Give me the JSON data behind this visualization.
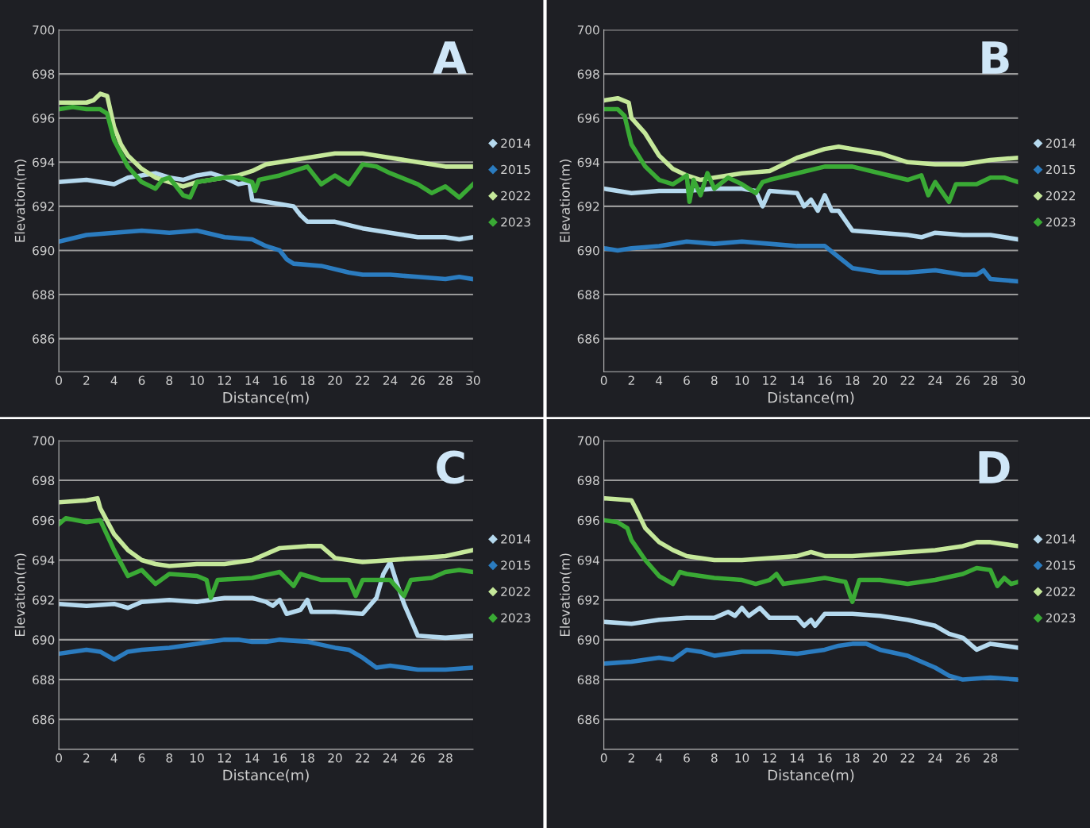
{
  "chart_data": [
    {
      "type": "line",
      "xlabel": "Distance(m)",
      "ylabel": "Elevation(m)",
      "annotations": [
        "A"
      ],
      "xlim": [
        0,
        30
      ],
      "xticks": [
        0,
        2,
        4,
        6,
        8,
        10,
        12,
        14,
        16,
        18,
        20,
        22,
        24,
        26,
        28,
        30
      ],
      "ylim": [
        684.5,
        700
      ],
      "yticks": [
        686,
        688,
        690,
        692,
        694,
        696,
        698,
        700
      ],
      "grid": "y",
      "legend": "right",
      "marker": "none",
      "line_style": "solid",
      "series": [
        {
          "name": "2014",
          "color": "#b5d9ee",
          "x": [
            0,
            2,
            4,
            5,
            7,
            8,
            9,
            10,
            11,
            12,
            13,
            13.8,
            14,
            15,
            16,
            17,
            17.5,
            18,
            20,
            22,
            24,
            26,
            28,
            29,
            30
          ],
          "values": [
            693.1,
            693.2,
            693.0,
            693.3,
            693.5,
            693.3,
            693.2,
            693.4,
            693.5,
            693.3,
            693.0,
            693.1,
            692.3,
            692.2,
            692.1,
            692.0,
            691.6,
            691.3,
            691.3,
            691.0,
            690.8,
            690.6,
            690.6,
            690.5,
            690.6
          ]
        },
        {
          "name": "2015",
          "color": "#2b7cc0",
          "x": [
            0,
            2,
            4,
            6,
            8,
            10,
            12,
            14,
            15,
            16,
            16.5,
            17,
            19,
            21,
            22,
            24,
            26,
            28,
            29,
            30
          ],
          "values": [
            690.4,
            690.7,
            690.8,
            690.9,
            690.8,
            690.9,
            690.6,
            690.5,
            690.2,
            690.0,
            689.6,
            689.4,
            689.3,
            689.0,
            688.9,
            688.9,
            688.8,
            688.7,
            688.8,
            688.7
          ]
        },
        {
          "name": "2022",
          "color": "#c5e89a",
          "x": [
            0,
            2,
            2.5,
            3,
            3.5,
            4,
            4.5,
            5,
            6,
            7,
            8,
            9,
            10,
            11,
            12,
            13,
            14,
            15,
            16,
            18,
            20,
            22,
            24,
            26,
            28,
            30
          ],
          "values": [
            696.7,
            696.7,
            696.8,
            697.1,
            697.0,
            695.6,
            694.8,
            694.3,
            693.7,
            693.3,
            693.1,
            692.9,
            693.1,
            693.2,
            693.3,
            693.4,
            693.6,
            693.9,
            694.0,
            694.2,
            694.4,
            694.4,
            694.2,
            694.0,
            693.8,
            693.8
          ]
        },
        {
          "name": "2023",
          "color": "#3aaa35",
          "x": [
            0,
            1,
            2,
            3,
            3.5,
            4,
            5,
            6,
            7,
            7.5,
            8,
            9,
            9.5,
            10,
            11,
            12,
            13,
            14,
            14.2,
            14.5,
            16,
            18,
            19,
            20,
            21,
            22,
            23,
            24,
            26,
            27,
            28,
            29,
            30
          ],
          "values": [
            696.4,
            696.5,
            696.4,
            696.4,
            696.2,
            695.0,
            693.8,
            693.1,
            692.8,
            693.2,
            693.3,
            692.5,
            692.4,
            693.1,
            693.2,
            693.3,
            693.3,
            693.1,
            692.7,
            693.2,
            693.4,
            693.8,
            693.0,
            693.4,
            693.0,
            693.9,
            693.8,
            693.5,
            693.0,
            692.6,
            692.9,
            692.4,
            693.0
          ]
        }
      ]
    },
    {
      "type": "line",
      "xlabel": "Distance(m)",
      "ylabel": "Elevation(m)",
      "annotations": [
        "B"
      ],
      "xlim": [
        0,
        30
      ],
      "xticks": [
        0,
        2,
        4,
        6,
        8,
        10,
        12,
        14,
        16,
        18,
        20,
        22,
        24,
        26,
        28,
        30
      ],
      "ylim": [
        684.5,
        700
      ],
      "yticks": [
        686,
        688,
        690,
        692,
        694,
        696,
        698,
        700
      ],
      "grid": "y",
      "legend": "right",
      "marker": "none",
      "line_style": "solid",
      "series": [
        {
          "name": "2014",
          "color": "#b5d9ee",
          "x": [
            0,
            2,
            4,
            6,
            8,
            10,
            11,
            11.5,
            12,
            14,
            14.5,
            15,
            15.5,
            16,
            16.5,
            17,
            18,
            20,
            22,
            23,
            24,
            26,
            28,
            30
          ],
          "values": [
            692.8,
            692.6,
            692.7,
            692.7,
            692.8,
            692.8,
            692.7,
            692.0,
            692.7,
            692.6,
            692.0,
            692.3,
            691.8,
            692.5,
            691.8,
            691.8,
            690.9,
            690.8,
            690.7,
            690.6,
            690.8,
            690.7,
            690.7,
            690.5
          ]
        },
        {
          "name": "2015",
          "color": "#2b7cc0",
          "x": [
            0,
            1,
            2,
            4,
            6,
            8,
            10,
            12,
            14,
            16,
            17,
            18,
            20,
            22,
            24,
            26,
            27,
            27.5,
            28,
            30
          ],
          "values": [
            690.1,
            690.0,
            690.1,
            690.2,
            690.4,
            690.3,
            690.4,
            690.3,
            690.2,
            690.2,
            689.7,
            689.2,
            689.0,
            689.0,
            689.1,
            688.9,
            688.9,
            689.1,
            688.7,
            688.6
          ]
        },
        {
          "name": "2022",
          "color": "#c5e89a",
          "x": [
            0,
            1,
            1.8,
            2,
            3,
            4,
            5,
            6,
            7,
            8,
            10,
            12,
            14,
            16,
            17,
            18,
            20,
            22,
            24,
            26,
            28,
            30
          ],
          "values": [
            696.8,
            696.9,
            696.7,
            696.0,
            695.3,
            694.3,
            693.7,
            693.4,
            693.2,
            693.3,
            693.5,
            693.6,
            694.2,
            694.6,
            694.7,
            694.6,
            694.4,
            694.0,
            693.9,
            693.9,
            694.1,
            694.2
          ]
        },
        {
          "name": "2023",
          "color": "#3aaa35",
          "x": [
            0,
            1,
            1.5,
            2,
            3,
            4,
            5,
            6,
            6.2,
            6.5,
            7,
            7.5,
            8,
            9,
            10,
            11,
            11.5,
            12,
            14,
            16,
            18,
            20,
            22,
            23,
            23.5,
            24,
            25,
            25.5,
            27,
            28,
            29,
            30
          ],
          "values": [
            696.4,
            696.4,
            696.1,
            694.8,
            693.8,
            693.2,
            693.0,
            693.4,
            692.2,
            693.2,
            692.5,
            693.5,
            692.8,
            693.3,
            693.0,
            692.6,
            693.1,
            693.2,
            693.5,
            693.8,
            693.8,
            693.5,
            693.2,
            693.4,
            692.5,
            693.1,
            692.2,
            693.0,
            693.0,
            693.3,
            693.3,
            693.1
          ]
        }
      ]
    },
    {
      "type": "line",
      "xlabel": "Distance(m)",
      "ylabel": "Elevation(m)",
      "annotations": [
        "C"
      ],
      "xlim": [
        0,
        30
      ],
      "xticks": [
        0,
        2,
        4,
        6,
        8,
        10,
        12,
        14,
        16,
        18,
        20,
        22,
        24,
        26,
        28
      ],
      "ylim": [
        684.5,
        700
      ],
      "yticks": [
        686,
        688,
        690,
        692,
        694,
        696,
        698,
        700
      ],
      "grid": "y",
      "legend": "right",
      "marker": "none",
      "line_style": "solid",
      "series": [
        {
          "name": "2014",
          "color": "#b5d9ee",
          "x": [
            0,
            2,
            4,
            5,
            6,
            8,
            10,
            12,
            14,
            15,
            15.5,
            16,
            16.5,
            17.5,
            18,
            18.3,
            20,
            22,
            23,
            23.5,
            24,
            24.5,
            25,
            26,
            28,
            30
          ],
          "values": [
            691.8,
            691.7,
            691.8,
            691.6,
            691.9,
            692.0,
            691.9,
            692.1,
            692.1,
            691.9,
            691.7,
            692.0,
            691.3,
            691.5,
            692.0,
            691.4,
            691.4,
            691.3,
            692.1,
            693.3,
            693.9,
            692.8,
            691.8,
            690.2,
            690.1,
            690.2
          ]
        },
        {
          "name": "2015",
          "color": "#2b7cc0",
          "x": [
            0,
            2,
            3,
            4,
            5,
            6,
            8,
            10,
            12,
            13,
            14,
            15,
            16,
            18,
            20,
            21,
            22,
            23,
            24,
            26,
            28,
            30
          ],
          "values": [
            689.3,
            689.5,
            689.4,
            689.0,
            689.4,
            689.5,
            689.6,
            689.8,
            690.0,
            690.0,
            689.9,
            689.9,
            690.0,
            689.9,
            689.6,
            689.5,
            689.1,
            688.6,
            688.7,
            688.5,
            688.5,
            688.6
          ]
        },
        {
          "name": "2022",
          "color": "#c5e89a",
          "x": [
            0,
            2,
            2.8,
            3,
            4,
            5,
            6,
            7,
            8,
            10,
            12,
            14,
            16,
            18,
            19,
            20,
            22,
            24,
            26,
            28,
            30
          ],
          "values": [
            696.9,
            697.0,
            697.1,
            696.6,
            695.3,
            694.5,
            694.0,
            693.8,
            693.7,
            693.8,
            693.8,
            694.0,
            694.6,
            694.7,
            694.7,
            694.1,
            693.9,
            694.0,
            694.1,
            694.2,
            694.5
          ]
        },
        {
          "name": "2023",
          "color": "#3aaa35",
          "x": [
            0,
            0.5,
            2,
            3,
            4,
            5,
            6,
            7,
            8,
            10,
            10.7,
            11,
            11.5,
            14,
            16,
            17,
            17.5,
            19,
            20,
            21,
            21.5,
            22,
            24,
            25,
            25.5,
            27,
            28,
            29,
            30
          ],
          "values": [
            695.8,
            696.1,
            695.9,
            696.0,
            694.5,
            693.2,
            693.5,
            692.8,
            693.3,
            693.2,
            693.0,
            692.1,
            693.0,
            693.1,
            693.4,
            692.7,
            693.3,
            693.0,
            693.0,
            693.0,
            692.2,
            693.0,
            693.0,
            692.2,
            693.0,
            693.1,
            693.4,
            693.5,
            693.4
          ]
        }
      ]
    },
    {
      "type": "line",
      "xlabel": "Distance(m)",
      "ylabel": "Elevation(m)",
      "annotations": [
        "D"
      ],
      "xlim": [
        0,
        30
      ],
      "xticks": [
        0,
        2,
        4,
        6,
        8,
        10,
        12,
        14,
        16,
        18,
        20,
        22,
        24,
        26,
        28
      ],
      "ylim": [
        684.5,
        700
      ],
      "yticks": [
        686,
        688,
        690,
        692,
        694,
        696,
        698,
        700
      ],
      "grid": "y",
      "legend": "right",
      "marker": "none",
      "line_style": "solid",
      "series": [
        {
          "name": "2014",
          "color": "#b5d9ee",
          "x": [
            0,
            2,
            4,
            6,
            8,
            9,
            9.5,
            10,
            10.5,
            11.3,
            12,
            14,
            14.5,
            15,
            15.3,
            16,
            18,
            20,
            22,
            24,
            25,
            26,
            27,
            28,
            30
          ],
          "values": [
            690.9,
            690.8,
            691.0,
            691.1,
            691.1,
            691.4,
            691.2,
            691.6,
            691.2,
            691.6,
            691.1,
            691.1,
            690.7,
            691.0,
            690.7,
            691.3,
            691.3,
            691.2,
            691.0,
            690.7,
            690.3,
            690.1,
            689.5,
            689.8,
            689.6
          ]
        },
        {
          "name": "2015",
          "color": "#2b7cc0",
          "x": [
            0,
            2,
            4,
            5,
            6,
            7,
            8,
            10,
            12,
            14,
            16,
            17,
            18,
            19,
            20,
            22,
            24,
            25,
            26,
            28,
            30
          ],
          "values": [
            688.8,
            688.9,
            689.1,
            689.0,
            689.5,
            689.4,
            689.2,
            689.4,
            689.4,
            689.3,
            689.5,
            689.7,
            689.8,
            689.8,
            689.5,
            689.2,
            688.6,
            688.2,
            688.0,
            688.1,
            688.0
          ]
        },
        {
          "name": "2022",
          "color": "#c5e89a",
          "x": [
            0,
            2,
            2.3,
            3,
            4,
            5,
            6,
            8,
            10,
            12,
            14,
            15,
            16,
            18,
            20,
            22,
            24,
            26,
            27,
            28,
            30
          ],
          "values": [
            697.1,
            697.0,
            696.6,
            695.6,
            694.9,
            694.5,
            694.2,
            694.0,
            694.0,
            694.1,
            694.2,
            694.4,
            694.2,
            694.2,
            694.3,
            694.4,
            694.5,
            694.7,
            694.9,
            694.9,
            694.7
          ]
        },
        {
          "name": "2023",
          "color": "#3aaa35",
          "x": [
            0,
            1,
            1.7,
            2,
            3,
            4,
            5,
            5.5,
            6,
            8,
            10,
            11,
            12,
            12.5,
            13,
            14,
            16,
            17.5,
            18,
            18.5,
            20,
            22,
            24,
            26,
            27,
            28,
            28.5,
            29,
            29.5,
            30
          ],
          "values": [
            696.0,
            695.9,
            695.6,
            695.0,
            694.0,
            693.2,
            692.8,
            693.4,
            693.3,
            693.1,
            693.0,
            692.8,
            693.0,
            693.3,
            692.8,
            692.9,
            693.1,
            692.9,
            691.9,
            693.0,
            693.0,
            692.8,
            693.0,
            693.3,
            693.6,
            693.5,
            692.7,
            693.1,
            692.8,
            692.9
          ]
        }
      ]
    }
  ]
}
